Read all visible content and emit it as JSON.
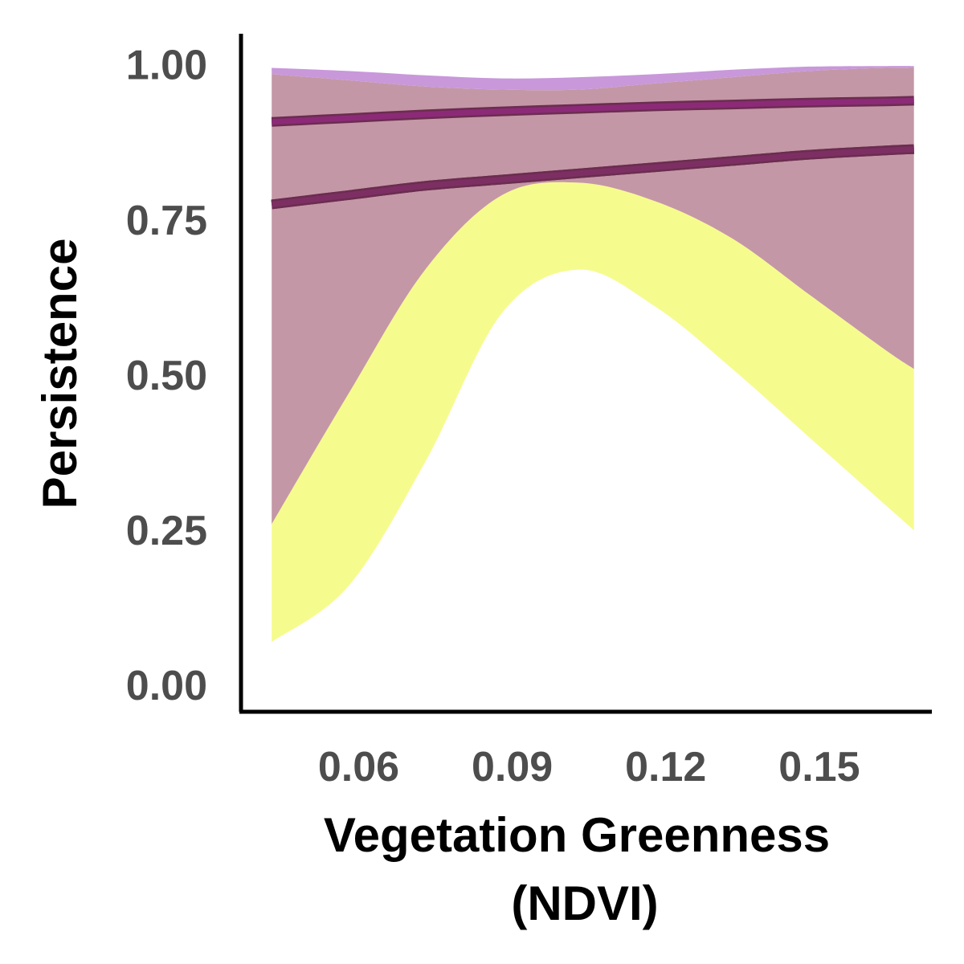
{
  "chart_data": {
    "type": "area",
    "title": "",
    "xlabel_lines": [
      "Vegetation Greenness",
      "(NDVI)"
    ],
    "ylabel": "Persistence",
    "xlim": [
      0.037,
      0.172
    ],
    "ylim": [
      -0.0425,
      1.05
    ],
    "x_ticks": [
      0.06,
      0.09,
      0.12,
      0.15
    ],
    "x_tick_labels": [
      "0.06",
      "0.09",
      "0.12",
      "0.15"
    ],
    "y_ticks": [
      0.0,
      0.25,
      0.5,
      0.75,
      1.0
    ],
    "y_tick_labels": [
      "0.00",
      "0.25",
      "0.50",
      "0.75",
      "1.00"
    ],
    "grid": false,
    "series": [
      {
        "name": "series-yellow",
        "fill_color": "#f6fb8e",
        "line_color": "#c8945a",
        "x": [
          0.043,
          0.058,
          0.073,
          0.088,
          0.103,
          0.118,
          0.133,
          0.148,
          0.163,
          0.1685
        ],
        "lower": [
          0.07,
          0.16,
          0.36,
          0.6,
          0.67,
          0.61,
          0.51,
          0.4,
          0.29,
          0.25
        ],
        "upper": [
          0.26,
          0.47,
          0.67,
          0.79,
          0.81,
          0.78,
          0.72,
          0.63,
          0.54,
          0.51
        ],
        "fit": [
          0.775,
          0.79,
          0.805,
          0.815,
          0.825,
          0.835,
          0.845,
          0.855,
          0.862,
          0.864
        ]
      },
      {
        "name": "series-brown",
        "fill_color": "#c497a6",
        "line_color": "#7d2f64",
        "x": [
          0.043,
          0.058,
          0.073,
          0.088,
          0.103,
          0.118,
          0.133,
          0.148,
          0.163,
          0.1685
        ],
        "lower": [
          0.26,
          0.47,
          0.67,
          0.79,
          0.81,
          0.78,
          0.72,
          0.63,
          0.54,
          0.51
        ],
        "upper": [
          0.985,
          0.975,
          0.965,
          0.96,
          0.96,
          0.97,
          0.98,
          0.99,
          0.995,
          0.995
        ],
        "fit": [
          0.775,
          0.79,
          0.805,
          0.815,
          0.825,
          0.835,
          0.845,
          0.855,
          0.862,
          0.864
        ]
      },
      {
        "name": "series-purple",
        "fill_color": "#c898da",
        "line_color": "#8c2a78",
        "x": [
          0.043,
          0.058,
          0.073,
          0.088,
          0.103,
          0.118,
          0.133,
          0.148,
          0.163,
          0.1685
        ],
        "lower": [
          0.985,
          0.975,
          0.965,
          0.96,
          0.96,
          0.97,
          0.98,
          0.99,
          0.995,
          0.995
        ],
        "upper": [
          0.995,
          0.99,
          0.983,
          0.978,
          0.98,
          0.985,
          0.992,
          0.997,
          0.998,
          0.998
        ],
        "fit": [
          0.908,
          0.914,
          0.92,
          0.925,
          0.929,
          0.933,
          0.936,
          0.939,
          0.941,
          0.942
        ]
      }
    ]
  }
}
